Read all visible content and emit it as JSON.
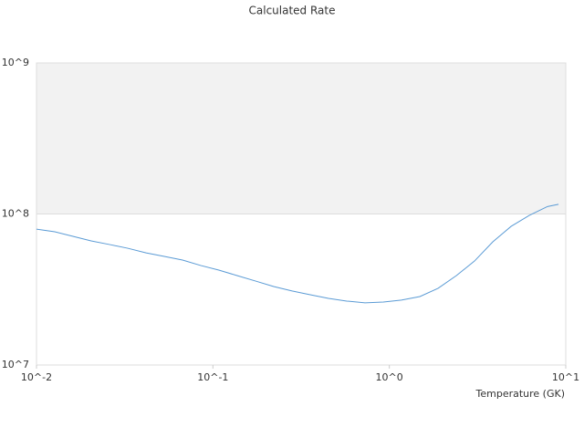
{
  "chart_data": {
    "type": "line",
    "title": "Calculated Rate",
    "x_label": "Temperature (GK)",
    "log_x": true,
    "log_y": true,
    "xlim": [
      0.01,
      10
    ],
    "ylim": [
      10000000,
      1000000000
    ],
    "xticks": [
      {
        "value": 0.01,
        "label": "10^-2"
      },
      {
        "value": 0.1,
        "label": "10^-1"
      },
      {
        "value": 1,
        "label": "10^0"
      },
      {
        "value": 10,
        "label": "10^1"
      }
    ],
    "yticks": [
      {
        "value": 10000000,
        "label": "10^7"
      },
      {
        "value": 100000000,
        "label": "10^8"
      },
      {
        "value": 1000000000,
        "label": "10^9"
      }
    ],
    "band_color": "#f2f2f2",
    "series": [
      {
        "color": "#5b9bd5",
        "x": [
          0.01,
          0.0127,
          0.0161,
          0.0204,
          0.0259,
          0.0329,
          0.0418,
          0.053,
          0.0673,
          0.0853,
          0.108,
          0.137,
          0.174,
          0.221,
          0.281,
          0.356,
          0.452,
          0.574,
          0.728,
          0.925,
          1.17,
          1.49,
          1.89,
          2.4,
          3.04,
          3.86,
          4.9,
          6.21,
          7.88,
          9.1
        ],
        "values": [
          79400000,
          76200000,
          71100000,
          66300000,
          62800000,
          59300000,
          55300000,
          52400000,
          49500000,
          45600000,
          42500000,
          39100000,
          36000000,
          33100000,
          30900000,
          29200000,
          27600000,
          26500000,
          25800000,
          26100000,
          26900000,
          28400000,
          32200000,
          39100000,
          48800000,
          65400000,
          82800000,
          97900000,
          112000000,
          116000000
        ]
      }
    ]
  }
}
